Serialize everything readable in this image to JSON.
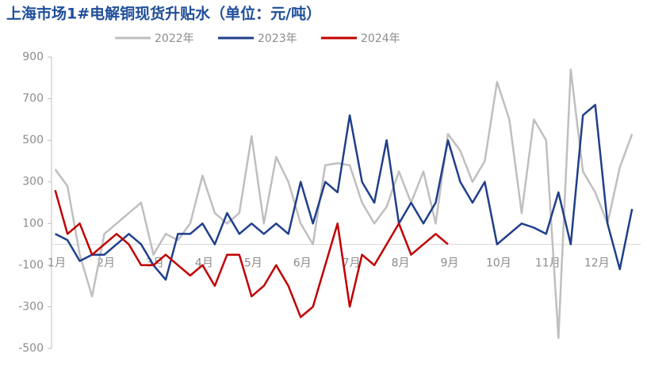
{
  "chart_data": {
    "type": "line",
    "title": "上海市场1#电解铜现货升贴水（单位：元/吨）",
    "categories": [
      "1月",
      null,
      null,
      null,
      "2月",
      null,
      null,
      null,
      "3月",
      null,
      null,
      null,
      "4月",
      null,
      null,
      null,
      "5月",
      null,
      null,
      null,
      "6月",
      null,
      null,
      null,
      "7月",
      null,
      null,
      null,
      "8月",
      null,
      null,
      null,
      "9月",
      null,
      null,
      null,
      "10月",
      null,
      null,
      null,
      "11月",
      null,
      null,
      null,
      "12月",
      null,
      null,
      null
    ],
    "series": [
      {
        "name": "2022年",
        "color": "#bfbfbf",
        "values": [
          360,
          280,
          -50,
          -250,
          50,
          100,
          150,
          200,
          -50,
          50,
          20,
          100,
          330,
          150,
          100,
          150,
          520,
          100,
          420,
          300,
          100,
          0,
          380,
          390,
          380,
          200,
          100,
          180,
          350,
          200,
          350,
          100,
          530,
          450,
          300,
          400,
          780,
          600,
          150,
          600,
          500,
          -450,
          840,
          350,
          250,
          100,
          370,
          530
        ]
      },
      {
        "name": "2023年",
        "color": "#1f3f8a",
        "values": [
          50,
          20,
          -80,
          -50,
          -50,
          0,
          50,
          0,
          -100,
          -170,
          50,
          50,
          100,
          0,
          150,
          50,
          100,
          50,
          100,
          50,
          300,
          100,
          300,
          250,
          620,
          300,
          200,
          500,
          100,
          200,
          100,
          200,
          500,
          300,
          200,
          300,
          0,
          50,
          100,
          80,
          50,
          250,
          0,
          620,
          670,
          100,
          -120,
          170
        ]
      },
      {
        "name": "2024年",
        "color": "#c00000",
        "values": [
          260,
          50,
          100,
          -50,
          0,
          50,
          0,
          -100,
          -100,
          -50,
          -100,
          -150,
          -100,
          -200,
          -50,
          -50,
          -250,
          -200,
          -100,
          -200,
          -350,
          -300,
          -100,
          100,
          -300,
          -50,
          -100,
          0,
          100,
          -50,
          0,
          50,
          0,
          null,
          null,
          null,
          null,
          null,
          null,
          null,
          null,
          null,
          null,
          null,
          null,
          null,
          null,
          null
        ]
      }
    ],
    "ylim": [
      -500,
      900
    ],
    "yticks": [
      -500,
      -300,
      -100,
      100,
      300,
      500,
      700,
      900
    ]
  }
}
